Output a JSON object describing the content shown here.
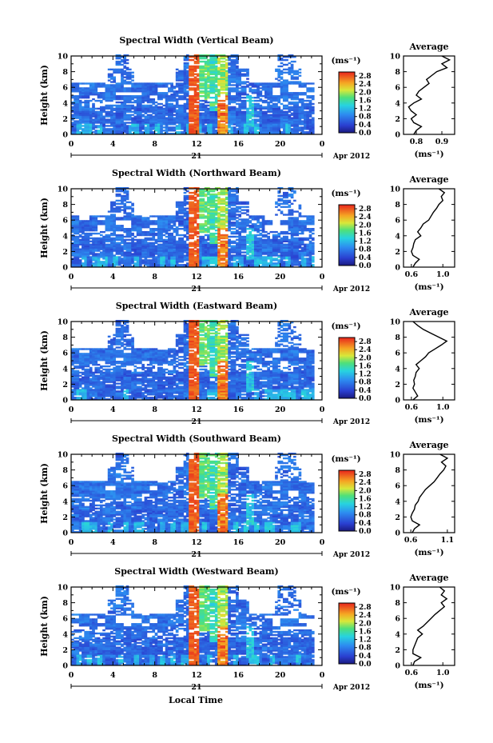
{
  "figure": {
    "xlabel_bottom": "Local Time"
  },
  "chart_data": [
    {
      "type": "heatmap",
      "title": "Spectral Width (Vertical Beam)",
      "ylabel": "Height (km)",
      "y_ticks": [
        "0",
        "2",
        "4",
        "6",
        "8",
        "10"
      ],
      "ylim": [
        0,
        10
      ],
      "x_ticks": [
        "0",
        "4",
        "8",
        "12",
        "16",
        "20",
        "0"
      ],
      "xlim": [
        0,
        24
      ],
      "day_label": "21",
      "date_label": "Apr 2012",
      "colorbar": {
        "unit": "(ms⁻¹)",
        "ticks": [
          "0.0",
          "0.4",
          "0.8",
          "1.2",
          "1.6",
          "2.0",
          "2.4",
          "2.8"
        ],
        "range": [
          0,
          3.0
        ]
      },
      "average": {
        "title": "Average",
        "xlabel": "(ms⁻¹)",
        "x_ticks": [
          "0.8",
          "0.9"
        ],
        "xlim": [
          0.75,
          0.95
        ],
        "y_ticks": [
          "0",
          "2",
          "4",
          "6",
          "8",
          "10"
        ],
        "profile": {
          "height": [
            0,
            0.5,
            1,
            1.5,
            2,
            2.5,
            3,
            3.5,
            4,
            4.5,
            5,
            5.5,
            6,
            6.5,
            7,
            7.5,
            8,
            8.5,
            9,
            9.5,
            10
          ],
          "value": [
            0.79,
            0.8,
            0.82,
            0.79,
            0.78,
            0.8,
            0.78,
            0.77,
            0.79,
            0.82,
            0.8,
            0.81,
            0.83,
            0.85,
            0.84,
            0.86,
            0.88,
            0.92,
            0.9,
            0.93,
            0.9
          ]
        }
      }
    },
    {
      "type": "heatmap",
      "title": "Spectral Width (Northward Beam)",
      "ylabel": "Height (km)",
      "y_ticks": [
        "0",
        "2",
        "4",
        "6",
        "8",
        "10"
      ],
      "ylim": [
        0,
        10
      ],
      "x_ticks": [
        "0",
        "4",
        "8",
        "12",
        "16",
        "20",
        "0"
      ],
      "xlim": [
        0,
        24
      ],
      "day_label": "21",
      "date_label": "Apr 2012",
      "colorbar": {
        "unit": "(ms⁻¹)",
        "ticks": [
          "0.0",
          "0.4",
          "0.8",
          "1.2",
          "1.6",
          "2.0",
          "2.4",
          "2.8"
        ],
        "range": [
          0,
          3.0
        ]
      },
      "average": {
        "title": "Average",
        "xlabel": "(ms⁻¹)",
        "x_ticks": [
          "0.6",
          "1.0"
        ],
        "xlim": [
          0.5,
          1.15
        ],
        "y_ticks": [
          "0",
          "2",
          "4",
          "6",
          "8",
          "10"
        ],
        "profile": {
          "height": [
            0,
            0.5,
            1,
            1.5,
            2,
            2.5,
            3,
            3.5,
            4,
            4.5,
            5,
            5.5,
            6,
            6.5,
            7,
            7.5,
            8,
            8.5,
            9,
            9.5,
            10
          ],
          "value": [
            0.62,
            0.65,
            0.7,
            0.62,
            0.6,
            0.62,
            0.63,
            0.65,
            0.72,
            0.68,
            0.72,
            0.75,
            0.82,
            0.85,
            0.88,
            0.92,
            0.95,
            1.0,
            0.98,
            1.02,
            0.95
          ]
        }
      }
    },
    {
      "type": "heatmap",
      "title": "Spectral Width (Eastward Beam)",
      "ylabel": "Height (km)",
      "y_ticks": [
        "0",
        "2",
        "4",
        "6",
        "8",
        "10"
      ],
      "ylim": [
        0,
        10
      ],
      "x_ticks": [
        "0",
        "4",
        "8",
        "12",
        "16",
        "20",
        "0"
      ],
      "xlim": [
        0,
        24
      ],
      "day_label": "21",
      "date_label": "Apr 2012",
      "colorbar": {
        "unit": "(ms⁻¹)",
        "ticks": [
          "0.0",
          "0.4",
          "0.8",
          "1.2",
          "1.6",
          "2.0",
          "2.4",
          "2.8"
        ],
        "range": [
          0,
          3.0
        ]
      },
      "average": {
        "title": "Average",
        "xlabel": "(ms⁻¹)",
        "x_ticks": [
          "0.6",
          "1.0"
        ],
        "xlim": [
          0.5,
          1.15
        ],
        "y_ticks": [
          "0",
          "2",
          "4",
          "6",
          "8",
          "10"
        ],
        "profile": {
          "height": [
            0,
            0.5,
            1,
            1.5,
            2,
            2.5,
            3,
            3.5,
            4,
            4.5,
            5,
            5.5,
            6,
            6.5,
            7,
            7.5,
            8,
            8.5,
            9,
            9.5,
            10
          ],
          "value": [
            0.62,
            0.68,
            0.65,
            0.62,
            0.64,
            0.63,
            0.65,
            0.66,
            0.7,
            0.66,
            0.72,
            0.78,
            0.82,
            0.9,
            0.98,
            1.05,
            0.95,
            0.85,
            0.75,
            0.68,
            0.62
          ]
        }
      }
    },
    {
      "type": "heatmap",
      "title": "Spectral Width (Southward Beam)",
      "ylabel": "Height (km)",
      "y_ticks": [
        "0",
        "2",
        "4",
        "6",
        "8",
        "10"
      ],
      "ylim": [
        0,
        10
      ],
      "x_ticks": [
        "0",
        "4",
        "8",
        "12",
        "16",
        "20",
        "0"
      ],
      "xlim": [
        0,
        24
      ],
      "day_label": "21",
      "date_label": "Apr 2012",
      "colorbar": {
        "unit": "(ms⁻¹)",
        "ticks": [
          "0.0",
          "0.4",
          "0.8",
          "1.2",
          "1.6",
          "2.0",
          "2.4",
          "2.8"
        ],
        "range": [
          0,
          3.0
        ]
      },
      "average": {
        "title": "Average",
        "xlabel": "(ms⁻¹)",
        "x_ticks": [
          "0.6",
          "1.1"
        ],
        "xlim": [
          0.5,
          1.2
        ],
        "y_ticks": [
          "0",
          "2",
          "4",
          "6",
          "8",
          "10"
        ],
        "profile": {
          "height": [
            0,
            0.5,
            1,
            1.5,
            2,
            2.5,
            3,
            3.5,
            4,
            4.5,
            5,
            5.5,
            6,
            6.5,
            7,
            7.5,
            8,
            8.5,
            9,
            9.5,
            10
          ],
          "value": [
            0.62,
            0.65,
            0.72,
            0.62,
            0.6,
            0.62,
            0.65,
            0.66,
            0.7,
            0.72,
            0.76,
            0.8,
            0.86,
            0.92,
            0.96,
            1.0,
            1.05,
            1.08,
            1.02,
            1.1,
            1.0
          ]
        }
      }
    },
    {
      "type": "heatmap",
      "title": "Spectral Width (Westward Beam)",
      "ylabel": "Height (km)",
      "y_ticks": [
        "0",
        "2",
        "4",
        "6",
        "8",
        "10"
      ],
      "ylim": [
        0,
        10
      ],
      "x_ticks": [
        "0",
        "4",
        "8",
        "12",
        "16",
        "20",
        "0"
      ],
      "xlim": [
        0,
        24
      ],
      "day_label": "21",
      "date_label": "Apr 2012",
      "colorbar": {
        "unit": "(ms⁻¹)",
        "ticks": [
          "0.0",
          "0.4",
          "0.8",
          "1.2",
          "1.6",
          "2.0",
          "2.4",
          "2.8"
        ],
        "range": [
          0,
          3.0
        ]
      },
      "average": {
        "title": "Average",
        "xlabel": "(ms⁻¹)",
        "x_ticks": [
          "0.6",
          "1.0"
        ],
        "xlim": [
          0.5,
          1.15
        ],
        "y_ticks": [
          "0",
          "2",
          "4",
          "6",
          "8",
          "10"
        ],
        "profile": {
          "height": [
            0,
            0.5,
            1,
            1.5,
            2,
            2.5,
            3,
            3.5,
            4,
            4.5,
            5,
            5.5,
            6,
            6.5,
            7,
            7.5,
            8,
            8.5,
            9,
            9.5,
            10
          ],
          "value": [
            0.62,
            0.64,
            0.72,
            0.62,
            0.62,
            0.64,
            0.66,
            0.68,
            0.74,
            0.68,
            0.75,
            0.8,
            0.85,
            0.9,
            0.96,
            1.02,
            0.98,
            1.05,
            0.98,
            1.02,
            0.96
          ]
        }
      }
    }
  ]
}
